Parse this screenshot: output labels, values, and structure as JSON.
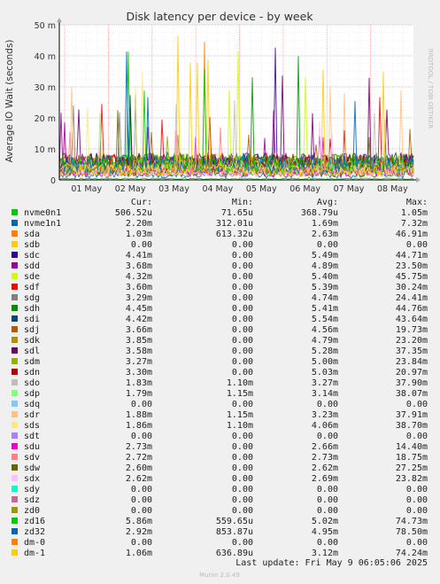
{
  "chart_data": {
    "type": "line",
    "title": "Disk latency per device - by week",
    "ylabel": "Average IO Wait (seconds)",
    "side_label": "RRDTOOL / TOBI OETIKER",
    "ylim": [
      0,
      50
    ],
    "y_ticks": [
      0,
      10,
      20,
      30,
      40,
      50
    ],
    "y_tick_labels": [
      "0",
      "10 m",
      "20 m",
      "30 m",
      "40 m",
      "50 m"
    ],
    "x_ticks": [
      "01 May",
      "02 May",
      "03 May",
      "04 May",
      "05 May",
      "06 May",
      "07 May",
      "08 May"
    ],
    "grid": true,
    "legend_headers": [
      "Cur:",
      "Min:",
      "Avg:",
      "Max:"
    ],
    "series": [
      {
        "name": "nvme0n1",
        "color": "#00cc00",
        "cur": "506.52u",
        "min": "71.65u",
        "avg": "368.79u",
        "max": "1.05m"
      },
      {
        "name": "nvme1n1",
        "color": "#0066b3",
        "cur": "2.20m",
        "min": "312.01u",
        "avg": "1.69m",
        "max": "7.32m"
      },
      {
        "name": "sda",
        "color": "#ff8000",
        "cur": "1.03m",
        "min": "613.32u",
        "avg": "2.63m",
        "max": "46.91m"
      },
      {
        "name": "sdb",
        "color": "#ffcc00",
        "cur": "0.00",
        "min": "0.00",
        "avg": "0.00",
        "max": "0.00"
      },
      {
        "name": "sdc",
        "color": "#330099",
        "cur": "4.41m",
        "min": "0.00",
        "avg": "5.49m",
        "max": "44.71m"
      },
      {
        "name": "sdd",
        "color": "#990099",
        "cur": "3.68m",
        "min": "0.00",
        "avg": "4.89m",
        "max": "23.50m"
      },
      {
        "name": "sde",
        "color": "#ccff00",
        "cur": "4.32m",
        "min": "0.00",
        "avg": "5.40m",
        "max": "45.75m"
      },
      {
        "name": "sdf",
        "color": "#ff0000",
        "cur": "3.60m",
        "min": "0.00",
        "avg": "5.39m",
        "max": "30.24m"
      },
      {
        "name": "sdg",
        "color": "#808080",
        "cur": "3.29m",
        "min": "0.00",
        "avg": "4.74m",
        "max": "24.41m"
      },
      {
        "name": "sdh",
        "color": "#008f00",
        "cur": "4.45m",
        "min": "0.00",
        "avg": "5.41m",
        "max": "44.76m"
      },
      {
        "name": "sdi",
        "color": "#00487d",
        "cur": "4.42m",
        "min": "0.00",
        "avg": "5.54m",
        "max": "43.64m"
      },
      {
        "name": "sdj",
        "color": "#b35a00",
        "cur": "3.66m",
        "min": "0.00",
        "avg": "4.56m",
        "max": "19.73m"
      },
      {
        "name": "sdk",
        "color": "#b38f00",
        "cur": "3.85m",
        "min": "0.00",
        "avg": "4.79m",
        "max": "23.20m"
      },
      {
        "name": "sdl",
        "color": "#6b006b",
        "cur": "3.58m",
        "min": "0.00",
        "avg": "5.28m",
        "max": "37.35m"
      },
      {
        "name": "sdm",
        "color": "#8fb300",
        "cur": "3.27m",
        "min": "0.00",
        "avg": "5.00m",
        "max": "23.84m"
      },
      {
        "name": "sdn",
        "color": "#b30000",
        "cur": "3.30m",
        "min": "0.00",
        "avg": "5.03m",
        "max": "20.97m"
      },
      {
        "name": "sdo",
        "color": "#bebebe",
        "cur": "1.83m",
        "min": "1.10m",
        "avg": "3.27m",
        "max": "37.90m"
      },
      {
        "name": "sdp",
        "color": "#80ff80",
        "cur": "1.79m",
        "min": "1.15m",
        "avg": "3.14m",
        "max": "38.07m"
      },
      {
        "name": "sdq",
        "color": "#80c9ff",
        "cur": "0.00",
        "min": "0.00",
        "avg": "0.00",
        "max": "0.00"
      },
      {
        "name": "sdr",
        "color": "#ffc080",
        "cur": "1.88m",
        "min": "1.15m",
        "avg": "3.23m",
        "max": "37.91m"
      },
      {
        "name": "sds",
        "color": "#ffe680",
        "cur": "1.86m",
        "min": "1.10m",
        "avg": "4.06m",
        "max": "38.70m"
      },
      {
        "name": "sdt",
        "color": "#aa80ff",
        "cur": "0.00",
        "min": "0.00",
        "avg": "0.00",
        "max": "0.00"
      },
      {
        "name": "sdu",
        "color": "#ee00cc",
        "cur": "2.73m",
        "min": "0.00",
        "avg": "2.66m",
        "max": "14.40m"
      },
      {
        "name": "sdv",
        "color": "#ff8080",
        "cur": "2.72m",
        "min": "0.00",
        "avg": "2.73m",
        "max": "18.75m"
      },
      {
        "name": "sdw",
        "color": "#666600",
        "cur": "2.60m",
        "min": "0.00",
        "avg": "2.62m",
        "max": "27.25m"
      },
      {
        "name": "sdx",
        "color": "#ffbfff",
        "cur": "2.62m",
        "min": "0.00",
        "avg": "2.69m",
        "max": "23.82m"
      },
      {
        "name": "sdy",
        "color": "#00ffcc",
        "cur": "0.00",
        "min": "0.00",
        "avg": "0.00",
        "max": "0.00"
      },
      {
        "name": "sdz",
        "color": "#cc6699",
        "cur": "0.00",
        "min": "0.00",
        "avg": "0.00",
        "max": "0.00"
      },
      {
        "name": "zd0",
        "color": "#999900",
        "cur": "0.00",
        "min": "0.00",
        "avg": "0.00",
        "max": "0.00"
      },
      {
        "name": "zd16",
        "color": "#00cc00",
        "cur": "5.86m",
        "min": "559.65u",
        "avg": "5.02m",
        "max": "74.73m"
      },
      {
        "name": "zd32",
        "color": "#0066b3",
        "cur": "2.92m",
        "min": "853.87u",
        "avg": "4.95m",
        "max": "78.50m"
      },
      {
        "name": "dm-0",
        "color": "#ff8000",
        "cur": "0.00",
        "min": "0.00",
        "avg": "0.00",
        "max": "0.00"
      },
      {
        "name": "dm-1",
        "color": "#ffcc00",
        "cur": "1.06m",
        "min": "636.89u",
        "avg": "3.12m",
        "max": "74.24m"
      }
    ],
    "last_update": "Last update: Fri May  9 06:05:06 2025",
    "footer": "Munin 2.0.49"
  }
}
